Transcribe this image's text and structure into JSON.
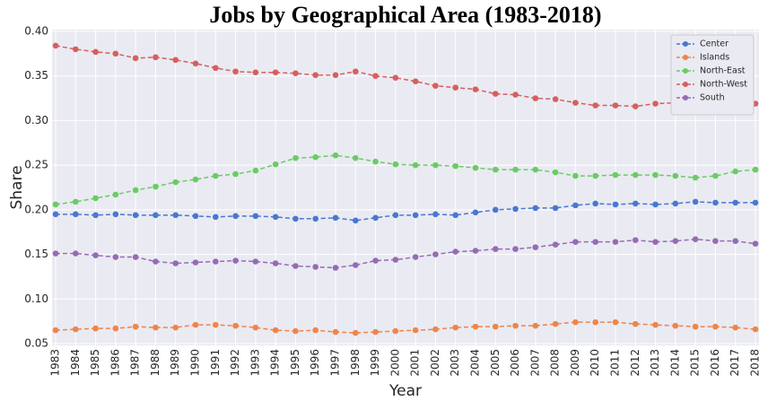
{
  "chart_data": {
    "type": "line",
    "title": "Jobs by Geographical Area (1983-2018)",
    "x_label": "Year",
    "y_label": "Share",
    "categories": [
      "1983",
      "1984",
      "1985",
      "1986",
      "1987",
      "1988",
      "1989",
      "1990",
      "1991",
      "1992",
      "1993",
      "1994",
      "1995",
      "1996",
      "1997",
      "1998",
      "1999",
      "2000",
      "2001",
      "2002",
      "2003",
      "2004",
      "2005",
      "2006",
      "2007",
      "2008",
      "2009",
      "2010",
      "2011",
      "2012",
      "2013",
      "2014",
      "2015",
      "2016",
      "2017",
      "2018"
    ],
    "series": [
      {
        "name": "Center",
        "color": "#4878d0",
        "values": [
          0.195,
          0.195,
          0.194,
          0.195,
          0.194,
          0.194,
          0.194,
          0.193,
          0.192,
          0.193,
          0.193,
          0.192,
          0.19,
          0.19,
          0.191,
          0.188,
          0.191,
          0.194,
          0.194,
          0.195,
          0.194,
          0.197,
          0.2,
          0.201,
          0.202,
          0.202,
          0.205,
          0.207,
          0.206,
          0.207,
          0.206,
          0.207,
          0.209,
          0.208,
          0.208,
          0.208
        ]
      },
      {
        "name": "Islands",
        "color": "#ee854a",
        "values": [
          0.065,
          0.066,
          0.067,
          0.067,
          0.069,
          0.068,
          0.068,
          0.071,
          0.071,
          0.07,
          0.068,
          0.065,
          0.064,
          0.065,
          0.063,
          0.062,
          0.063,
          0.064,
          0.065,
          0.066,
          0.068,
          0.069,
          0.069,
          0.07,
          0.07,
          0.072,
          0.074,
          0.074,
          0.074,
          0.072,
          0.071,
          0.07,
          0.069,
          0.069,
          0.068,
          0.066
        ]
      },
      {
        "name": "North-East",
        "color": "#6acc64",
        "values": [
          0.206,
          0.209,
          0.213,
          0.217,
          0.222,
          0.226,
          0.231,
          0.234,
          0.238,
          0.24,
          0.244,
          0.251,
          0.258,
          0.259,
          0.261,
          0.258,
          0.254,
          0.251,
          0.25,
          0.25,
          0.249,
          0.247,
          0.245,
          0.245,
          0.245,
          0.242,
          0.238,
          0.238,
          0.239,
          0.239,
          0.239,
          0.238,
          0.236,
          0.238,
          0.243,
          0.245
        ]
      },
      {
        "name": "North-West",
        "color": "#d65f5f",
        "values": [
          0.384,
          0.38,
          0.377,
          0.375,
          0.37,
          0.371,
          0.368,
          0.364,
          0.359,
          0.355,
          0.354,
          0.354,
          0.353,
          0.351,
          0.351,
          0.355,
          0.35,
          0.348,
          0.344,
          0.339,
          0.337,
          0.335,
          0.33,
          0.329,
          0.325,
          0.324,
          0.32,
          0.317,
          0.317,
          0.316,
          0.319,
          0.32,
          0.32,
          0.32,
          0.317,
          0.319
        ]
      },
      {
        "name": "South",
        "color": "#956cb4",
        "values": [
          0.151,
          0.151,
          0.149,
          0.147,
          0.147,
          0.142,
          0.14,
          0.141,
          0.142,
          0.143,
          0.142,
          0.14,
          0.137,
          0.136,
          0.135,
          0.138,
          0.143,
          0.144,
          0.147,
          0.15,
          0.153,
          0.154,
          0.156,
          0.156,
          0.158,
          0.161,
          0.164,
          0.164,
          0.164,
          0.166,
          0.164,
          0.165,
          0.167,
          0.165,
          0.165,
          0.162
        ]
      }
    ],
    "ylim": [
      0.048,
      0.402
    ],
    "yticks": [
      0.05,
      {
        "value": 0.1,
        "label": "0.10"
      },
      0.15,
      {
        "value": 0.2,
        "label": "0.20"
      },
      0.25,
      {
        "value": 0.3,
        "label": "0.30"
      },
      0.35,
      {
        "value": 0.4,
        "label": "0.40"
      }
    ],
    "grid": true,
    "legend": "upper right",
    "background": "#eaeaf2"
  }
}
